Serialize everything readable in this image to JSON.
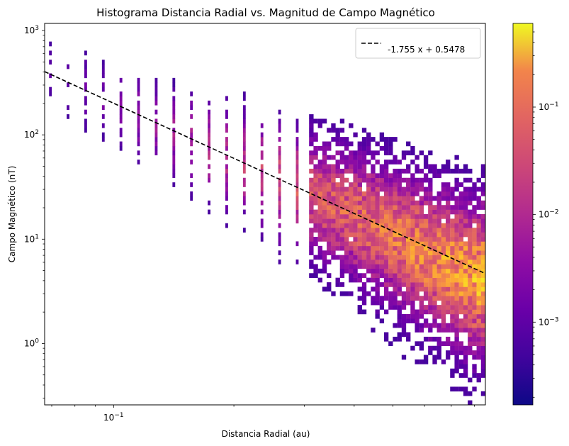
{
  "chart_data": {
    "type": "heatmap",
    "title": "Histograma Distancia Radial vs. Magnitud de Campo Magnético",
    "xlabel": "Distancia Radial (au)",
    "ylabel": "Campo Magnético (nT)",
    "xscale": "log",
    "yscale": "log",
    "xlim": [
      0.0672,
      0.852
    ],
    "ylim": [
      0.258,
      1170
    ],
    "x_tick_labels": [
      {
        "value": 0.1,
        "label": "10⁻¹"
      }
    ],
    "y_tick_labels": [
      {
        "value": 1,
        "label": "10⁰"
      },
      {
        "value": 10,
        "label": "10¹"
      },
      {
        "value": 100,
        "label": "10²"
      },
      {
        "value": 1000,
        "label": "10³"
      }
    ],
    "colorbar": {
      "scale": "log",
      "range": [
        0.00017,
        0.6
      ],
      "colormap": "plasma",
      "tick_labels": [
        {
          "value": 0.001,
          "label": "10⁻³"
        },
        {
          "value": 0.01,
          "label": "10⁻²"
        },
        {
          "value": 0.1,
          "label": "10⁻¹"
        }
      ]
    },
    "fit_line": {
      "label": "-1.755 x + 0.5478",
      "slope": -1.755,
      "intercept": 0.5478,
      "style": "dashed"
    },
    "legend_position": "top-right",
    "grid": false,
    "density_ridge": [
      {
        "r": 0.072,
        "b": 380
      },
      {
        "r": 0.08,
        "b": 300
      },
      {
        "r": 0.09,
        "b": 240
      },
      {
        "r": 0.1,
        "b": 200
      },
      {
        "r": 0.12,
        "b": 140
      },
      {
        "r": 0.15,
        "b": 95
      },
      {
        "r": 0.2,
        "b": 58
      },
      {
        "r": 0.25,
        "b": 40
      },
      {
        "r": 0.3,
        "b": 29
      },
      {
        "r": 0.4,
        "b": 17
      },
      {
        "r": 0.5,
        "b": 11
      },
      {
        "r": 0.6,
        "b": 7.5
      },
      {
        "r": 0.7,
        "b": 5.5
      },
      {
        "r": 0.8,
        "b": 4.3
      }
    ]
  }
}
